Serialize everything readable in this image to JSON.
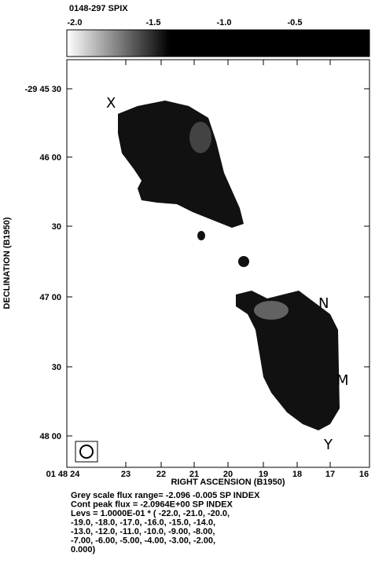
{
  "header": {
    "title": "0148-297  SPIX"
  },
  "colorbar": {
    "ticks": [
      "-2.0",
      "-1.5",
      "-1.0",
      "-0.5"
    ]
  },
  "axes": {
    "y_label": "DECLINATION (B1950)",
    "x_label": "RIGHT ASCENSION (B1950)",
    "y_ticks": [
      "-29 45 30",
      "46 00",
      "30",
      "47 00",
      "30",
      "48 00"
    ],
    "x_ticks": [
      "01 48 24",
      "23",
      "22",
      "21",
      "20",
      "19",
      "18",
      "17",
      "16"
    ]
  },
  "annotations": [
    "X",
    "N",
    "M",
    "Y"
  ],
  "footer": {
    "lines": [
      "Grey scale flux range=  -2.096  -0.005 SP INDEX",
      "Cont peak flux = -2.0964E+00 SP INDEX",
      "Levs =  1.0000E-01 * (  -22.0, -21.0, -20.0,",
      "-19.0, -18.0, -17.0, -16.0, -15.0, -14.0,",
      "-13.0, -12.0, -11.0, -10.0, -9.00, -8.00,",
      "-7.00, -6.00, -5.00, -4.00, -3.00, -2.00,",
      "0.000)"
    ]
  }
}
